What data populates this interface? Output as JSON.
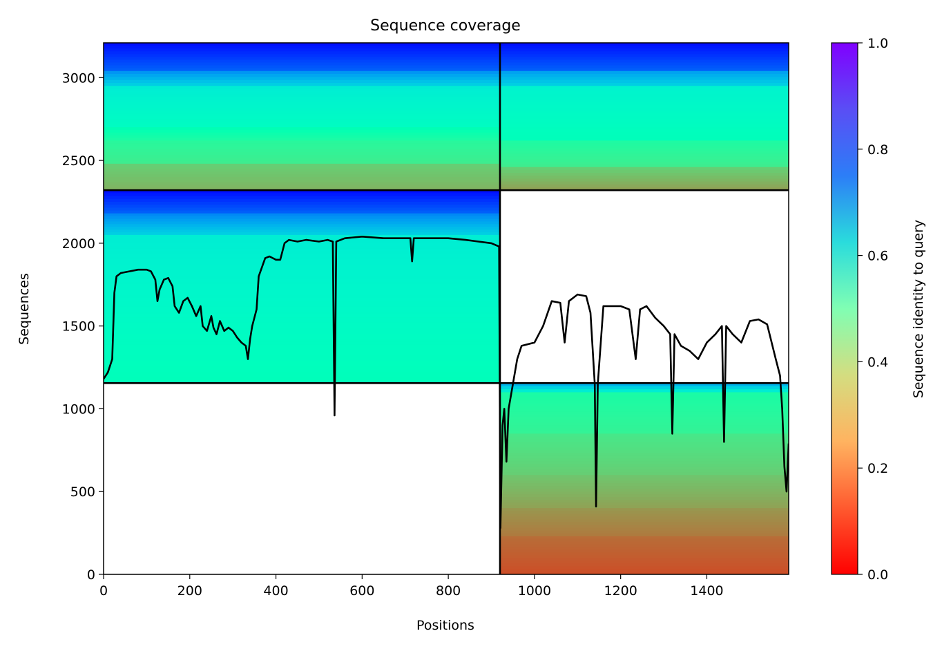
{
  "chart_data": {
    "type": "heatmap",
    "title": "Sequence coverage",
    "xlabel": "Positions",
    "ylabel": "Sequences",
    "xlim": [
      0,
      1590
    ],
    "ylim": [
      0,
      3210
    ],
    "x_ticks": [
      0,
      200,
      400,
      600,
      800,
      1000,
      1200,
      1400
    ],
    "y_ticks": [
      0,
      500,
      1000,
      1500,
      2000,
      2500,
      3000
    ],
    "grid": false,
    "colorbar": {
      "label": "Sequence identity to query",
      "min": 0.0,
      "max": 1.0,
      "ticks": [
        "0.0",
        "0.2",
        "0.4",
        "0.6",
        "0.8",
        "1.0"
      ],
      "colormap": "rainbow_r"
    },
    "boundaries": {
      "domain_split_x": 920,
      "row_splits_y": [
        1155,
        2320
      ]
    },
    "heatmap_blocks": [
      {
        "x": [
          0,
          920
        ],
        "y": [
          2320,
          3210
        ],
        "identity_bands": [
          {
            "y": [
              3040,
              3210
            ],
            "identity": [
              0.98,
              0.88
            ]
          },
          {
            "y": [
              2950,
              3040
            ],
            "identity": [
              0.8,
              0.7
            ]
          },
          {
            "y": [
              2700,
              2950
            ],
            "identity": [
              0.62,
              0.55
            ]
          },
          {
            "y": [
              2620,
              2700
            ],
            "identity": [
              0.5,
              0.45
            ]
          },
          {
            "y": [
              2480,
              2620
            ],
            "identity": [
              0.42,
              0.38
            ]
          },
          {
            "y": [
              2320,
              2480
            ],
            "identity": [
              0.3,
              0.25
            ]
          }
        ]
      },
      {
        "x": [
          920,
          1590
        ],
        "y": [
          2320,
          3210
        ],
        "identity_bands": [
          {
            "y": [
              3040,
              3210
            ],
            "identity": [
              0.98,
              0.88
            ]
          },
          {
            "y": [
              2950,
              3040
            ],
            "identity": [
              0.78,
              0.7
            ]
          },
          {
            "y": [
              2620,
              2950
            ],
            "identity": [
              0.6,
              0.52
            ]
          },
          {
            "y": [
              2460,
              2620
            ],
            "identity": [
              0.44,
              0.38
            ]
          },
          {
            "y": [
              2320,
              2460
            ],
            "identity": [
              0.3,
              0.22
            ]
          }
        ]
      },
      {
        "x": [
          0,
          920
        ],
        "y": [
          1155,
          2320
        ],
        "identity_bands": [
          {
            "y": [
              2180,
              2320
            ],
            "identity": [
              0.98,
              0.88
            ]
          },
          {
            "y": [
              2050,
              2180
            ],
            "identity": [
              0.82,
              0.7
            ]
          },
          {
            "y": [
              1155,
              2050
            ],
            "identity": [
              0.62,
              0.52
            ]
          }
        ]
      },
      {
        "x": [
          920,
          1590
        ],
        "y": [
          0,
          1155
        ],
        "identity_bands": [
          {
            "y": [
              1100,
              1155
            ],
            "identity": [
              0.75,
              0.62
            ]
          },
          {
            "y": [
              850,
              1100
            ],
            "identity": [
              0.45,
              0.4
            ]
          },
          {
            "y": [
              600,
              850
            ],
            "identity": [
              0.36,
              0.3
            ]
          },
          {
            "y": [
              400,
              600
            ],
            "identity": [
              0.28,
              0.22
            ]
          },
          {
            "y": [
              230,
              400
            ],
            "identity": [
              0.2,
              0.16
            ]
          },
          {
            "y": [
              0,
              230
            ],
            "identity": [
              0.14,
              0.1
            ]
          }
        ]
      }
    ],
    "series": [
      {
        "type": "line",
        "color": "#000000",
        "points": [
          [
            0,
            1180
          ],
          [
            10,
            1220
          ],
          [
            20,
            1300
          ],
          [
            25,
            1700
          ],
          [
            30,
            1800
          ],
          [
            40,
            1820
          ],
          [
            60,
            1830
          ],
          [
            80,
            1840
          ],
          [
            100,
            1840
          ],
          [
            110,
            1830
          ],
          [
            120,
            1780
          ],
          [
            125,
            1650
          ],
          [
            130,
            1720
          ],
          [
            140,
            1780
          ],
          [
            150,
            1790
          ],
          [
            160,
            1740
          ],
          [
            165,
            1620
          ],
          [
            175,
            1580
          ],
          [
            185,
            1650
          ],
          [
            195,
            1670
          ],
          [
            205,
            1620
          ],
          [
            215,
            1560
          ],
          [
            225,
            1620
          ],
          [
            230,
            1500
          ],
          [
            240,
            1470
          ],
          [
            250,
            1560
          ],
          [
            255,
            1490
          ],
          [
            262,
            1450
          ],
          [
            270,
            1530
          ],
          [
            280,
            1470
          ],
          [
            290,
            1490
          ],
          [
            300,
            1470
          ],
          [
            310,
            1430
          ],
          [
            320,
            1400
          ],
          [
            330,
            1380
          ],
          [
            335,
            1300
          ],
          [
            340,
            1420
          ],
          [
            345,
            1500
          ],
          [
            355,
            1600
          ],
          [
            360,
            1800
          ],
          [
            375,
            1910
          ],
          [
            385,
            1920
          ],
          [
            400,
            1900
          ],
          [
            410,
            1900
          ],
          [
            420,
            2000
          ],
          [
            430,
            2020
          ],
          [
            450,
            2010
          ],
          [
            470,
            2020
          ],
          [
            500,
            2010
          ],
          [
            520,
            2020
          ],
          [
            532,
            2010
          ],
          [
            536,
            960
          ],
          [
            540,
            2010
          ],
          [
            560,
            2030
          ],
          [
            600,
            2040
          ],
          [
            650,
            2030
          ],
          [
            700,
            2030
          ],
          [
            712,
            2030
          ],
          [
            716,
            1890
          ],
          [
            720,
            2030
          ],
          [
            760,
            2030
          ],
          [
            800,
            2030
          ],
          [
            840,
            2020
          ],
          [
            870,
            2010
          ],
          [
            900,
            2000
          ],
          [
            918,
            1980
          ],
          [
            921,
            280
          ],
          [
            926,
            900
          ],
          [
            930,
            1000
          ],
          [
            935,
            680
          ],
          [
            940,
            1000
          ],
          [
            950,
            1150
          ],
          [
            960,
            1300
          ],
          [
            970,
            1380
          ],
          [
            1000,
            1400
          ],
          [
            1020,
            1500
          ],
          [
            1040,
            1650
          ],
          [
            1060,
            1640
          ],
          [
            1070,
            1400
          ],
          [
            1080,
            1650
          ],
          [
            1100,
            1690
          ],
          [
            1120,
            1680
          ],
          [
            1130,
            1580
          ],
          [
            1140,
            1150
          ],
          [
            1143,
            410
          ],
          [
            1147,
            1150
          ],
          [
            1160,
            1620
          ],
          [
            1200,
            1620
          ],
          [
            1220,
            1600
          ],
          [
            1235,
            1300
          ],
          [
            1245,
            1600
          ],
          [
            1260,
            1620
          ],
          [
            1280,
            1550
          ],
          [
            1300,
            1500
          ],
          [
            1315,
            1450
          ],
          [
            1320,
            850
          ],
          [
            1325,
            1450
          ],
          [
            1340,
            1380
          ],
          [
            1360,
            1350
          ],
          [
            1380,
            1300
          ],
          [
            1400,
            1400
          ],
          [
            1420,
            1450
          ],
          [
            1435,
            1500
          ],
          [
            1440,
            800
          ],
          [
            1445,
            1500
          ],
          [
            1460,
            1450
          ],
          [
            1480,
            1400
          ],
          [
            1500,
            1530
          ],
          [
            1520,
            1540
          ],
          [
            1540,
            1510
          ],
          [
            1560,
            1300
          ],
          [
            1570,
            1200
          ],
          [
            1575,
            1000
          ],
          [
            1580,
            650
          ],
          [
            1585,
            500
          ],
          [
            1590,
            790
          ]
        ]
      }
    ]
  }
}
